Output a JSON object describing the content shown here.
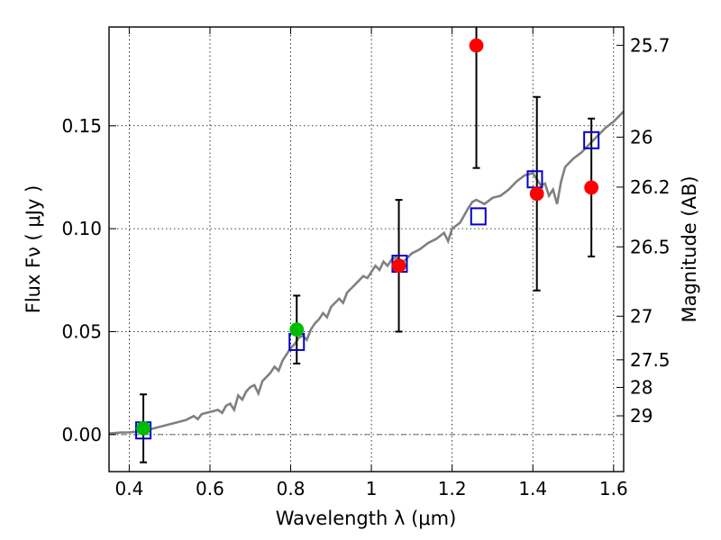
{
  "chart_data": {
    "type": "scatter",
    "xlabel": "Wavelength  λ (μm)",
    "ylabel": "Flux  Fν ( μJy )",
    "y2label": "Magnitude (AB)",
    "xlim": [
      0.35,
      1.625
    ],
    "ylim": [
      -0.018,
      0.198
    ],
    "xticks": [
      0.4,
      0.6,
      0.8,
      1.0,
      1.2,
      1.4,
      1.6
    ],
    "xtick_labels": [
      "0.4",
      "0.6",
      "0.8",
      "1",
      "1.2",
      "1.4",
      "1.6"
    ],
    "yticks": [
      0.0,
      0.05,
      0.1,
      0.15
    ],
    "ytick_labels": [
      "0.00",
      "0.05",
      "0.10",
      "0.15"
    ],
    "y2ticks": [
      {
        "label": "25.7",
        "flux": 0.1891
      },
      {
        "label": "26",
        "flux": 0.1445
      },
      {
        "label": "26.2",
        "flux": 0.1202
      },
      {
        "label": "26.5",
        "flux": 0.0912
      },
      {
        "label": "27",
        "flux": 0.0575
      },
      {
        "label": "27.5",
        "flux": 0.0363
      },
      {
        "label": "28",
        "flux": 0.0229
      },
      {
        "label": "29",
        "flux": 0.0091
      }
    ],
    "grid": true,
    "zero_line": true,
    "colors": {
      "model": "#808080",
      "red": "#ff0000",
      "green": "#00bb00",
      "square": "#0000cc",
      "errorbar": "#000000"
    },
    "series": [
      {
        "kind": "line",
        "points": [
          [
            0.35,
            0.0005
          ],
          [
            0.38,
            0.001
          ],
          [
            0.4,
            0.001
          ],
          [
            0.42,
            0.0015
          ],
          [
            0.44,
            0.002
          ],
          [
            0.46,
            0.003
          ],
          [
            0.48,
            0.004
          ],
          [
            0.5,
            0.005
          ],
          [
            0.52,
            0.006
          ],
          [
            0.54,
            0.007
          ],
          [
            0.56,
            0.009
          ],
          [
            0.57,
            0.0075
          ],
          [
            0.58,
            0.01
          ],
          [
            0.6,
            0.011
          ],
          [
            0.62,
            0.012
          ],
          [
            0.63,
            0.0105
          ],
          [
            0.64,
            0.014
          ],
          [
            0.65,
            0.015
          ],
          [
            0.66,
            0.012
          ],
          [
            0.67,
            0.019
          ],
          [
            0.68,
            0.017
          ],
          [
            0.69,
            0.021
          ],
          [
            0.7,
            0.023
          ],
          [
            0.71,
            0.024
          ],
          [
            0.72,
            0.02
          ],
          [
            0.73,
            0.026
          ],
          [
            0.74,
            0.028
          ],
          [
            0.75,
            0.03
          ],
          [
            0.76,
            0.033
          ],
          [
            0.77,
            0.031
          ],
          [
            0.78,
            0.036
          ],
          [
            0.79,
            0.039
          ],
          [
            0.8,
            0.042
          ],
          [
            0.81,
            0.044
          ],
          [
            0.82,
            0.047
          ],
          [
            0.83,
            0.048
          ],
          [
            0.84,
            0.046
          ],
          [
            0.85,
            0.051
          ],
          [
            0.86,
            0.054
          ],
          [
            0.87,
            0.056
          ],
          [
            0.88,
            0.059
          ],
          [
            0.89,
            0.057
          ],
          [
            0.9,
            0.062
          ],
          [
            0.91,
            0.064
          ],
          [
            0.92,
            0.066
          ],
          [
            0.93,
            0.064
          ],
          [
            0.94,
            0.069
          ],
          [
            0.95,
            0.071
          ],
          [
            0.96,
            0.073
          ],
          [
            0.97,
            0.075
          ],
          [
            0.98,
            0.077
          ],
          [
            0.99,
            0.076
          ],
          [
            1.0,
            0.079
          ],
          [
            1.01,
            0.082
          ],
          [
            1.02,
            0.08
          ],
          [
            1.03,
            0.084
          ],
          [
            1.04,
            0.082
          ],
          [
            1.05,
            0.085
          ],
          [
            1.06,
            0.086
          ],
          [
            1.08,
            0.084
          ],
          [
            1.1,
            0.088
          ],
          [
            1.12,
            0.09
          ],
          [
            1.14,
            0.093
          ],
          [
            1.16,
            0.095
          ],
          [
            1.18,
            0.098
          ],
          [
            1.19,
            0.094
          ],
          [
            1.2,
            0.1
          ],
          [
            1.22,
            0.103
          ],
          [
            1.24,
            0.11
          ],
          [
            1.25,
            0.113
          ],
          [
            1.26,
            0.114
          ],
          [
            1.27,
            0.113
          ],
          [
            1.28,
            0.112
          ],
          [
            1.3,
            0.115
          ],
          [
            1.32,
            0.116
          ],
          [
            1.34,
            0.119
          ],
          [
            1.36,
            0.123
          ],
          [
            1.38,
            0.126
          ],
          [
            1.4,
            0.127
          ],
          [
            1.41,
            0.124
          ],
          [
            1.42,
            0.121
          ],
          [
            1.43,
            0.122
          ],
          [
            1.44,
            0.116
          ],
          [
            1.45,
            0.119
          ],
          [
            1.46,
            0.112
          ],
          [
            1.47,
            0.123
          ],
          [
            1.48,
            0.13
          ],
          [
            1.5,
            0.134
          ],
          [
            1.52,
            0.137
          ],
          [
            1.54,
            0.141
          ],
          [
            1.56,
            0.145
          ],
          [
            1.58,
            0.149
          ],
          [
            1.6,
            0.152
          ],
          [
            1.625,
            0.157
          ]
        ]
      },
      {
        "kind": "squares",
        "points": [
          [
            0.435,
            0.002
          ],
          [
            0.815,
            0.045
          ],
          [
            1.07,
            0.083
          ],
          [
            1.265,
            0.106
          ],
          [
            1.405,
            0.124
          ],
          [
            1.545,
            0.143
          ]
        ]
      },
      {
        "kind": "errorbar-points",
        "points": [
          {
            "x": 0.435,
            "y": 0.003,
            "err": 0.0165,
            "color": "green"
          },
          {
            "x": 0.815,
            "y": 0.051,
            "err": 0.0165,
            "color": "green"
          },
          {
            "x": 1.068,
            "y": 0.082,
            "err": 0.032,
            "color": "red"
          },
          {
            "x": 1.26,
            "y": 0.189,
            "err": 0.0595,
            "color": "red"
          },
          {
            "x": 1.41,
            "y": 0.117,
            "err": 0.047,
            "color": "red"
          },
          {
            "x": 1.545,
            "y": 0.12,
            "err": 0.0335,
            "color": "red"
          }
        ]
      }
    ]
  }
}
